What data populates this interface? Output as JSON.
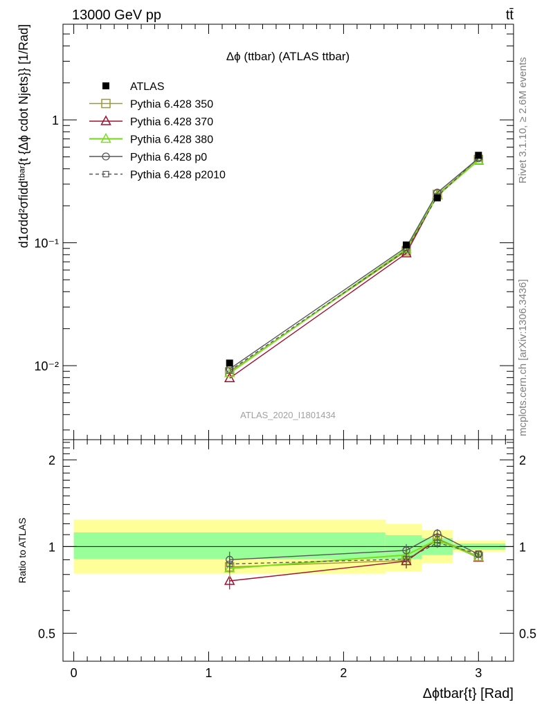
{
  "header": {
    "energy_label": "13000 GeV pp",
    "process_label": "tt̄"
  },
  "side_text": {
    "rivet": "Rivet 3.1.10, ≥ 2.6M events",
    "site": "mcplots.cern.ch [arXiv:1306.3436]"
  },
  "chart_data": {
    "type": "line",
    "title": "Δϕ (ttbar) (ATLAS ttbar)",
    "watermark": "ATLAS_2020_I1801434",
    "ylabel_main": "d1σdd²σfiddᵗᵇᵃʳ{t {Δϕ cdot Njets}} [1/Rad]",
    "ylabel_ratio": "Ratio to ATLAS",
    "xlabel": "Δϕtbar{t} [Rad]",
    "x_ticks": [
      "0",
      "1",
      "2",
      "3"
    ],
    "y_ticks_main": [
      "10⁻²",
      "10⁻¹",
      "1"
    ],
    "y_ticks_ratio": [
      "0.5",
      "1",
      "2"
    ],
    "xlim": [
      -0.08,
      3.26
    ],
    "ylim_main": [
      0.0025,
      6.0
    ],
    "yscale_main": "log",
    "ylim_ratio": [
      0.4,
      2.35
    ],
    "yscale_ratio": "log",
    "x": [
      1.155,
      2.465,
      2.695,
      3.0
    ],
    "x_bins": [
      [
        0,
        2.31
      ],
      [
        2.31,
        2.58
      ],
      [
        2.58,
        2.81
      ],
      [
        2.81,
        3.2
      ]
    ],
    "data": {
      "name": "ATLAS",
      "values": [
        0.0105,
        0.096,
        0.232,
        0.515
      ],
      "band_inner": [
        [
          0.905,
          1.12
        ],
        [
          0.905,
          1.095
        ],
        [
          0.935,
          1.07
        ],
        [
          0.975,
          1.025
        ]
      ],
      "band_outer": [
        [
          0.805,
          1.24
        ],
        [
          0.82,
          1.2
        ],
        [
          0.875,
          1.14
        ],
        [
          0.96,
          1.05
        ]
      ]
    },
    "series": [
      {
        "name": "Pythia 6.428 350",
        "color": "#9a9a2a",
        "marker": "square-open",
        "dash": "solid",
        "values": [
          0.0089,
          0.086,
          0.247,
          0.476
        ],
        "ratio": [
          0.85,
          0.895,
          1.065,
          0.925
        ],
        "ratio_err": [
          0.06,
          0.05,
          0.04,
          0.02
        ]
      },
      {
        "name": "Pythia 6.428 370",
        "color": "#a01030",
        "marker": "triangle-open",
        "dash": "solid",
        "values": [
          0.0079,
          0.082,
          0.244,
          0.467
        ],
        "ratio": [
          0.76,
          0.89,
          1.06,
          0.915
        ],
        "ratio_err": [
          0.05,
          0.05,
          0.04,
          0.02
        ]
      },
      {
        "name": "Pythia 6.428 380",
        "color": "#7ddd22",
        "marker": "triangle-open",
        "dash": "solid",
        "values": [
          0.0087,
          0.089,
          0.242,
          0.47
        ],
        "ratio": [
          0.84,
          0.935,
          1.055,
          0.92
        ],
        "ratio_err": [
          0.06,
          0.05,
          0.04,
          0.02
        ]
      },
      {
        "name": "Pythia 6.428 p0",
        "color": "#555555",
        "marker": "circle-open",
        "dash": "solid",
        "values": [
          0.0094,
          0.092,
          0.256,
          0.487
        ],
        "ratio": [
          0.9,
          0.97,
          1.11,
          0.94
        ],
        "ratio_err": [
          0.06,
          0.05,
          0.04,
          0.02
        ]
      },
      {
        "name": "Pythia 6.428 p2010",
        "color": "#555555",
        "marker": "square-small-open",
        "dash": "dashed",
        "values": [
          0.0091,
          0.087,
          0.238,
          0.492
        ],
        "ratio": [
          0.87,
          0.905,
          1.03,
          0.945
        ],
        "ratio_err": [
          0.06,
          0.05,
          0.04,
          0.02
        ]
      }
    ],
    "legend_position": "top-left",
    "grid": false
  }
}
